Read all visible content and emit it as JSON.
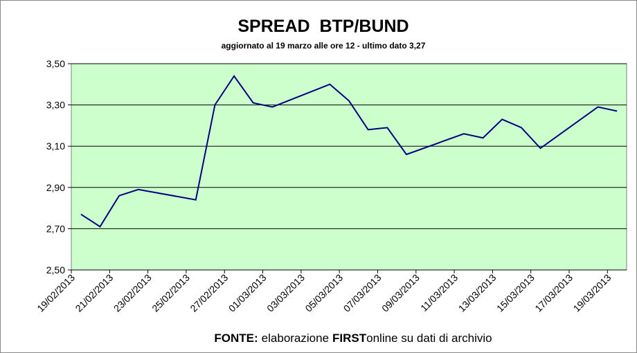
{
  "chart_data": {
    "type": "line",
    "title": "SPREAD  BTP/BUND",
    "subtitle": "aggiornato al 19 marzo alle ore 12 - ultimo dato 3,27",
    "footer": [
      "FONTE:",
      "elaborazione",
      "FIRST",
      "online su dati di archivio"
    ],
    "x": [
      "19/02/2013",
      "20/02/2013",
      "21/02/2013",
      "22/02/2013",
      "25/02/2013",
      "26/02/2013",
      "27/02/2013",
      "28/02/2013",
      "01/03/2013",
      "04/03/2013",
      "05/03/2013",
      "06/03/2013",
      "07/03/2013",
      "08/03/2013",
      "11/03/2013",
      "12/03/2013",
      "13/03/2013",
      "14/03/2013",
      "15/03/2013",
      "18/03/2013",
      "19/03/2013"
    ],
    "values": [
      2.77,
      2.71,
      2.86,
      2.89,
      2.84,
      3.3,
      3.44,
      3.31,
      3.29,
      3.4,
      3.32,
      3.18,
      3.19,
      3.06,
      3.16,
      3.14,
      3.23,
      3.19,
      3.09,
      3.29,
      3.27
    ],
    "color": "#000080",
    "xlim": [
      "19/02/2013",
      "19/03/2013"
    ],
    "xticks": [
      "19/02/2013",
      "21/02/2013",
      "23/02/2013",
      "25/02/2013",
      "27/02/2013",
      "01/03/2013",
      "03/03/2013",
      "05/03/2013",
      "07/03/2013",
      "09/03/2013",
      "11/03/2013",
      "13/03/2013",
      "15/03/2013",
      "17/03/2013",
      "19/03/2013"
    ],
    "ylim": [
      2.5,
      3.5
    ],
    "yticks": [
      {
        "value": 2.5,
        "label": "2,50"
      },
      {
        "value": 2.7,
        "label": "2,70"
      },
      {
        "value": 2.9,
        "label": "2,90"
      },
      {
        "value": 3.1,
        "label": "3,10"
      },
      {
        "value": 3.3,
        "label": "3,30"
      },
      {
        "value": 3.5,
        "label": "3,50"
      }
    ],
    "grid": true,
    "plot_background": "#ccffcc"
  }
}
